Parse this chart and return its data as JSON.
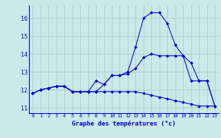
{
  "xlabel": "Graphe des températures (°c)",
  "background_color": "#cce8e8",
  "grid_color": "#aacccc",
  "line_color": "#0000cc",
  "hours": [
    0,
    1,
    2,
    3,
    4,
    5,
    6,
    7,
    8,
    9,
    10,
    11,
    12,
    13,
    14,
    15,
    16,
    17,
    18,
    19,
    20,
    21,
    22,
    23
  ],
  "curve1": [
    11.8,
    12.0,
    12.1,
    12.2,
    12.2,
    11.9,
    11.9,
    11.9,
    11.9,
    11.9,
    11.9,
    11.9,
    11.9,
    11.9,
    11.8,
    11.7,
    11.6,
    11.5,
    11.4,
    11.3,
    11.2,
    11.1,
    11.1,
    11.1
  ],
  "curve2": [
    11.8,
    12.0,
    12.1,
    12.2,
    12.2,
    11.9,
    11.9,
    11.9,
    11.9,
    12.3,
    12.8,
    12.8,
    12.9,
    13.2,
    13.8,
    14.0,
    13.9,
    13.9,
    13.9,
    13.9,
    13.5,
    12.5,
    12.5,
    11.1
  ],
  "curve3": [
    11.8,
    12.0,
    12.1,
    12.2,
    12.2,
    11.9,
    11.9,
    11.9,
    12.5,
    12.3,
    12.8,
    12.8,
    13.0,
    14.4,
    16.0,
    16.3,
    16.3,
    15.7,
    14.5,
    13.9,
    12.5,
    12.5,
    12.5,
    11.1
  ],
  "ylim": [
    10.7,
    16.7
  ],
  "yticks": [
    11,
    12,
    13,
    14,
    15,
    16
  ],
  "xlim": [
    -0.5,
    23.5
  ],
  "xticks": [
    0,
    1,
    2,
    3,
    4,
    5,
    6,
    7,
    8,
    9,
    10,
    11,
    12,
    13,
    14,
    15,
    16,
    17,
    18,
    19,
    20,
    21,
    22,
    23
  ]
}
